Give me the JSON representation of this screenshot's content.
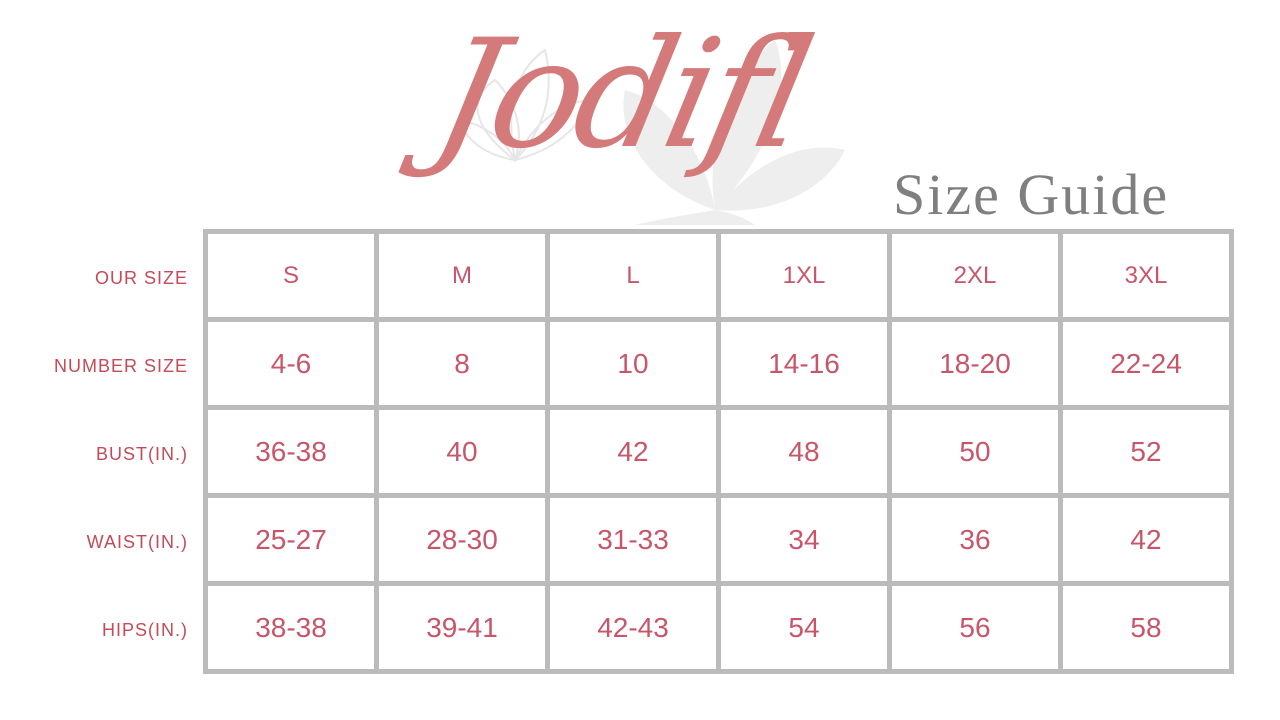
{
  "brand": {
    "logo_text": "Jodifl",
    "logo_color": "#d47a7a"
  },
  "header": {
    "title": "Size Guide"
  },
  "colors": {
    "text": "#c8566a",
    "grid": "#bbbbbb",
    "title": "#7f7f7f"
  },
  "table": {
    "row_labels": [
      "OUR SIZE",
      "NUMBER SIZE",
      "BUST(IN.)",
      "WAIST(IN.)",
      "HIPS(IN.)"
    ],
    "rows": [
      [
        "S",
        "M",
        "L",
        "1XL",
        "2XL",
        "3XL"
      ],
      [
        "4-6",
        "8",
        "10",
        "14-16",
        "18-20",
        "22-24"
      ],
      [
        "36-38",
        "40",
        "42",
        "48",
        "50",
        "52"
      ],
      [
        "25-27",
        "28-30",
        "31-33",
        "34",
        "36",
        "42"
      ],
      [
        "38-38",
        "39-41",
        "42-43",
        "54",
        "56",
        "58"
      ]
    ]
  }
}
